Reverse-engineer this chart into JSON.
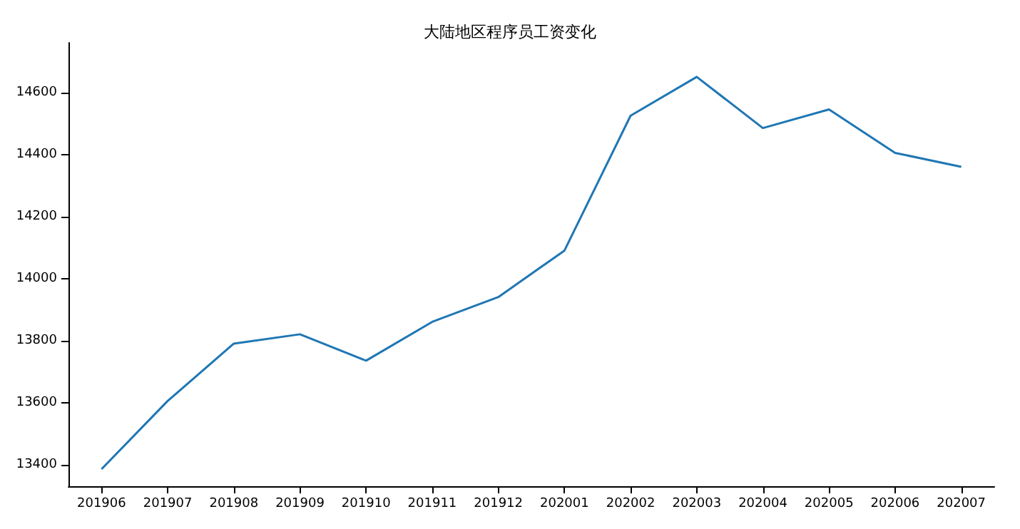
{
  "chart_data": {
    "type": "line",
    "title": "大陆地区程序员工资变化",
    "categories": [
      "201906",
      "201907",
      "201908",
      "201909",
      "201910",
      "201911",
      "201912",
      "202001",
      "202002",
      "202003",
      "202004",
      "202005",
      "202006",
      "202007"
    ],
    "series": [
      {
        "color": "#1f77b4",
        "values": [
          13385,
          13605,
          13790,
          13820,
          13735,
          13860,
          13940,
          14090,
          14525,
          14650,
          14485,
          14545,
          14405,
          14360
        ]
      }
    ],
    "ylim": [
      13330,
      14760
    ],
    "yticks": [
      13400,
      13600,
      13800,
      14000,
      14200,
      14400,
      14600
    ],
    "grid": false,
    "marker": "none",
    "line_style": "solid"
  }
}
